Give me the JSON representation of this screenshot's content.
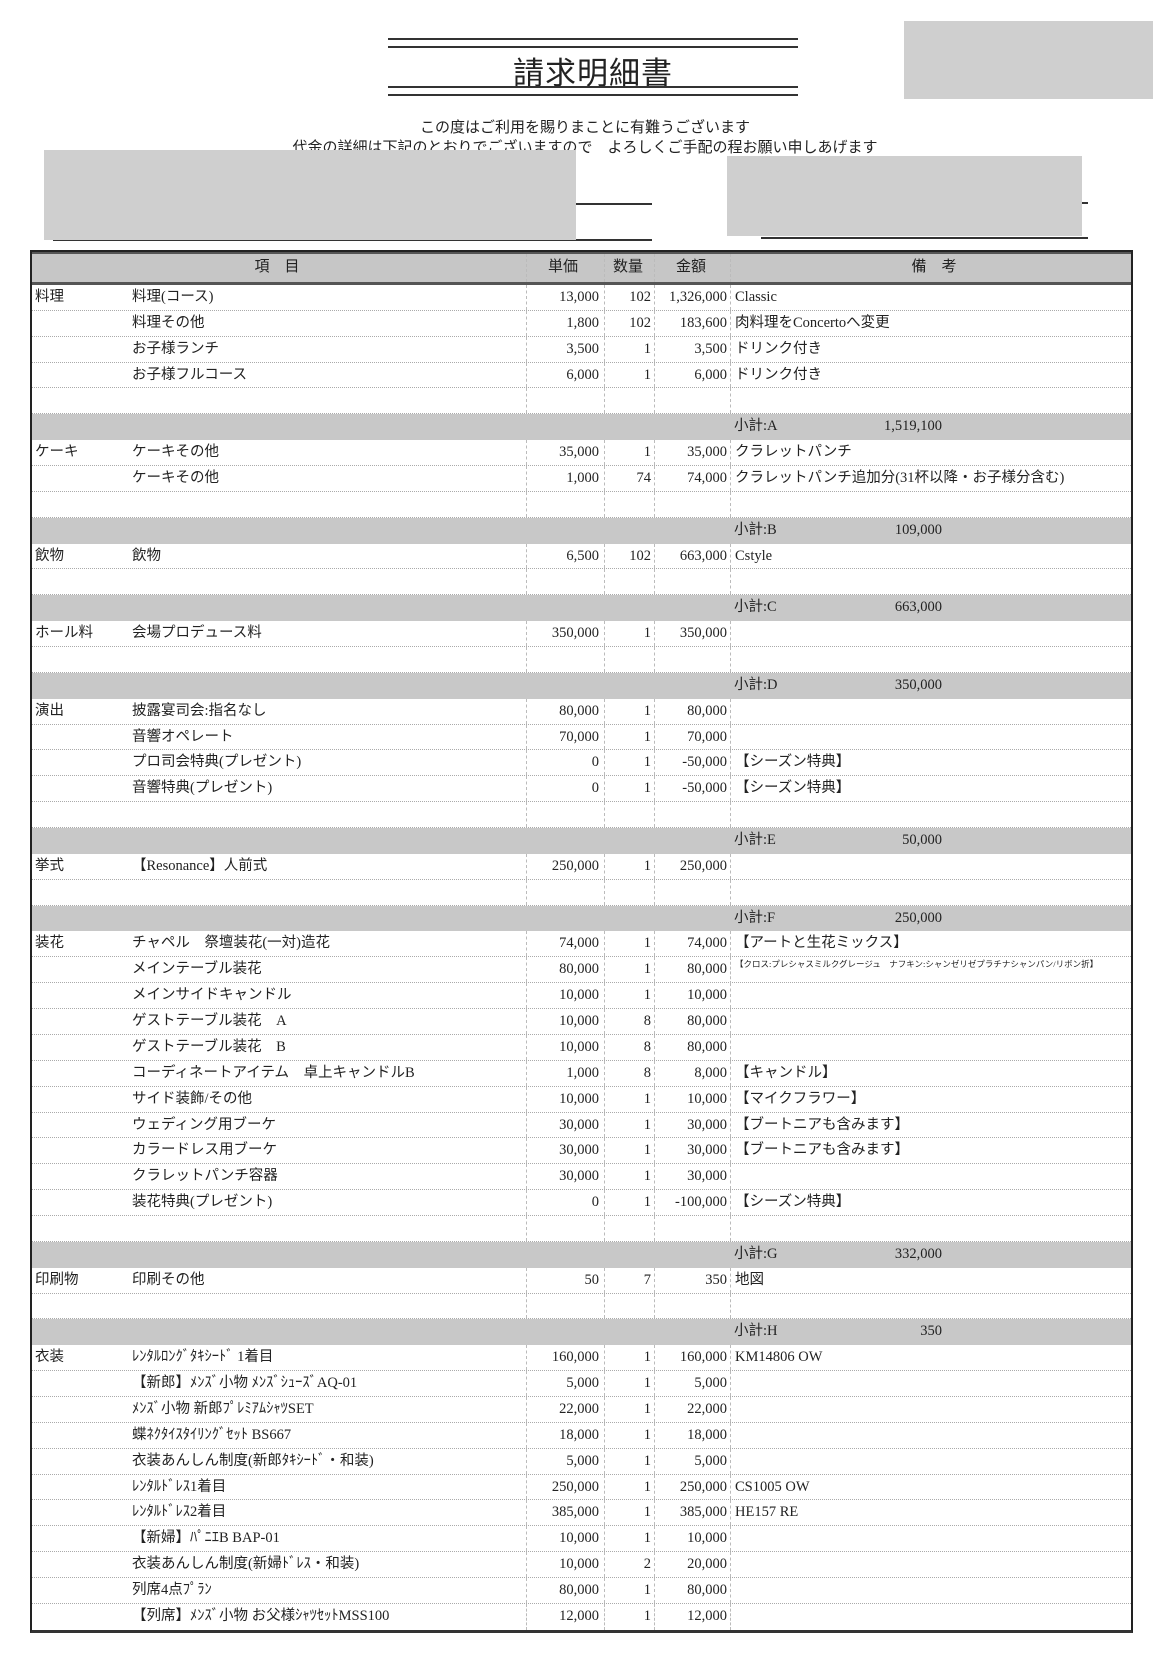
{
  "document": {
    "title": "請求明細書",
    "message_line1": "この度はご利用を賜りまことに有難うございます",
    "message_line2": "代金の詳細は下記のとおりでございますので　よろしくご手配の程お願い申しあげます"
  },
  "table": {
    "headers": {
      "item": "項　目",
      "unit_price": "単価",
      "qty": "数量",
      "amount": "金額",
      "note": "備　考"
    },
    "sections": [
      {
        "category": "料理",
        "items": [
          {
            "name": "料理(コース)",
            "unit_price": "13,000",
            "qty": "102",
            "amount": "1,326,000",
            "note": "Classic"
          },
          {
            "name": "料理その他",
            "unit_price": "1,800",
            "qty": "102",
            "amount": "183,600",
            "note": "肉料理をConcertoへ変更"
          },
          {
            "name": "お子様ランチ",
            "unit_price": "3,500",
            "qty": "1",
            "amount": "3,500",
            "note": "ドリンク付き"
          },
          {
            "name": "お子様フルコース",
            "unit_price": "6,000",
            "qty": "1",
            "amount": "6,000",
            "note": "ドリンク付き"
          }
        ],
        "subtotal": {
          "label": "小計:A",
          "value": "1,519,100"
        }
      },
      {
        "category": "ケーキ",
        "items": [
          {
            "name": "ケーキその他",
            "unit_price": "35,000",
            "qty": "1",
            "amount": "35,000",
            "note": "クラレットパンチ"
          },
          {
            "name": "ケーキその他",
            "unit_price": "1,000",
            "qty": "74",
            "amount": "74,000",
            "note": "クラレットパンチ追加分(31杯以降・お子様分含む)"
          }
        ],
        "subtotal": {
          "label": "小計:B",
          "value": "109,000"
        }
      },
      {
        "category": "飲物",
        "items": [
          {
            "name": "飲物",
            "unit_price": "6,500",
            "qty": "102",
            "amount": "663,000",
            "note": "Cstyle"
          }
        ],
        "subtotal": {
          "label": "小計:C",
          "value": "663,000"
        }
      },
      {
        "category": "ホール料",
        "items": [
          {
            "name": "会場プロデュース料",
            "unit_price": "350,000",
            "qty": "1",
            "amount": "350,000",
            "note": ""
          }
        ],
        "subtotal": {
          "label": "小計:D",
          "value": "350,000"
        }
      },
      {
        "category": "演出",
        "items": [
          {
            "name": "披露宴司会:指名なし",
            "unit_price": "80,000",
            "qty": "1",
            "amount": "80,000",
            "note": ""
          },
          {
            "name": "音響オペレート",
            "unit_price": "70,000",
            "qty": "1",
            "amount": "70,000",
            "note": ""
          },
          {
            "name": "プロ司会特典(プレゼント)",
            "unit_price": "0",
            "qty": "1",
            "amount": "-50,000",
            "note": "【シーズン特典】"
          },
          {
            "name": "音響特典(プレゼント)",
            "unit_price": "0",
            "qty": "1",
            "amount": "-50,000",
            "note": "【シーズン特典】"
          }
        ],
        "subtotal": {
          "label": "小計:E",
          "value": "50,000"
        }
      },
      {
        "category": "挙式",
        "items": [
          {
            "name": "【Resonance】人前式",
            "unit_price": "250,000",
            "qty": "1",
            "amount": "250,000",
            "note": ""
          }
        ],
        "subtotal": {
          "label": "小計:F",
          "value": "250,000"
        }
      },
      {
        "category": "装花",
        "items": [
          {
            "name": "チャペル　祭壇装花(一対)造花",
            "unit_price": "74,000",
            "qty": "1",
            "amount": "74,000",
            "note": "【アートと生花ミックス】"
          },
          {
            "name": "メインテーブル装花",
            "unit_price": "80,000",
            "qty": "1",
            "amount": "80,000",
            "note": "【クロス:プレシャスミルクグレージュ　ナフキン:シャンゼリゼプラチナシャンパン/リボン折】",
            "small_note": true
          },
          {
            "name": "メインサイドキャンドル",
            "unit_price": "10,000",
            "qty": "1",
            "amount": "10,000",
            "note": ""
          },
          {
            "name": "ゲストテーブル装花　A",
            "unit_price": "10,000",
            "qty": "8",
            "amount": "80,000",
            "note": ""
          },
          {
            "name": "ゲストテーブル装花　B",
            "unit_price": "10,000",
            "qty": "8",
            "amount": "80,000",
            "note": ""
          },
          {
            "name": "コーディネートアイテム　卓上キャンドルB",
            "unit_price": "1,000",
            "qty": "8",
            "amount": "8,000",
            "note": "【キャンドル】"
          },
          {
            "name": "サイド装飾/その他",
            "unit_price": "10,000",
            "qty": "1",
            "amount": "10,000",
            "note": "【マイクフラワー】"
          },
          {
            "name": "ウェディング用ブーケ",
            "unit_price": "30,000",
            "qty": "1",
            "amount": "30,000",
            "note": "【ブートニアも含みます】"
          },
          {
            "name": "カラードレス用ブーケ",
            "unit_price": "30,000",
            "qty": "1",
            "amount": "30,000",
            "note": "【ブートニアも含みます】"
          },
          {
            "name": "クラレットパンチ容器",
            "unit_price": "30,000",
            "qty": "1",
            "amount": "30,000",
            "note": ""
          },
          {
            "name": "装花特典(プレゼント)",
            "unit_price": "0",
            "qty": "1",
            "amount": "-100,000",
            "note": "【シーズン特典】"
          }
        ],
        "subtotal": {
          "label": "小計:G",
          "value": "332,000"
        }
      },
      {
        "category": "印刷物",
        "items": [
          {
            "name": "印刷その他",
            "unit_price": "50",
            "qty": "7",
            "amount": "350",
            "note": "地図"
          }
        ],
        "subtotal": {
          "label": "小計:H",
          "value": "350"
        }
      },
      {
        "category": "衣装",
        "items": [
          {
            "name": "ﾚﾝﾀﾙﾛﾝｸﾞﾀｷｼｰﾄﾞ 1着目",
            "unit_price": "160,000",
            "qty": "1",
            "amount": "160,000",
            "note": "KM14806 OW"
          },
          {
            "name": "【新郎】ﾒﾝｽﾞ小物 ﾒﾝｽﾞｼｭｰｽﾞAQ-01",
            "unit_price": "5,000",
            "qty": "1",
            "amount": "5,000",
            "note": ""
          },
          {
            "name": "ﾒﾝｽﾞ小物 新郎ﾌﾟﾚﾐｱﾑｼｬﾂSET",
            "unit_price": "22,000",
            "qty": "1",
            "amount": "22,000",
            "note": ""
          },
          {
            "name": "蝶ﾈｸﾀｲｽﾀｲﾘﾝｸﾞｾｯﾄ BS667",
            "unit_price": "18,000",
            "qty": "1",
            "amount": "18,000",
            "note": ""
          },
          {
            "name": "衣装あんしん制度(新郎ﾀｷｼｰﾄﾞ・和装)",
            "unit_price": "5,000",
            "qty": "1",
            "amount": "5,000",
            "note": ""
          },
          {
            "name": "ﾚﾝﾀﾙﾄﾞﾚｽ1着目",
            "unit_price": "250,000",
            "qty": "1",
            "amount": "250,000",
            "note": "CS1005 OW"
          },
          {
            "name": "ﾚﾝﾀﾙﾄﾞﾚｽ2着目",
            "unit_price": "385,000",
            "qty": "1",
            "amount": "385,000",
            "note": "HE157 RE"
          },
          {
            "name": "【新婦】ﾊﾟﾆｴB BAP-01",
            "unit_price": "10,000",
            "qty": "1",
            "amount": "10,000",
            "note": ""
          },
          {
            "name": "衣装あんしん制度(新婦ﾄﾞﾚｽ・和装)",
            "unit_price": "10,000",
            "qty": "2",
            "amount": "20,000",
            "note": ""
          },
          {
            "name": "列席4点ﾌﾟﾗﾝ",
            "unit_price": "80,000",
            "qty": "1",
            "amount": "80,000",
            "note": ""
          },
          {
            "name": "【列席】ﾒﾝｽﾞ小物 お父様ｼｬﾂｾｯﾄMSS100",
            "unit_price": "12,000",
            "qty": "1",
            "amount": "12,000",
            "note": ""
          }
        ]
      }
    ]
  }
}
